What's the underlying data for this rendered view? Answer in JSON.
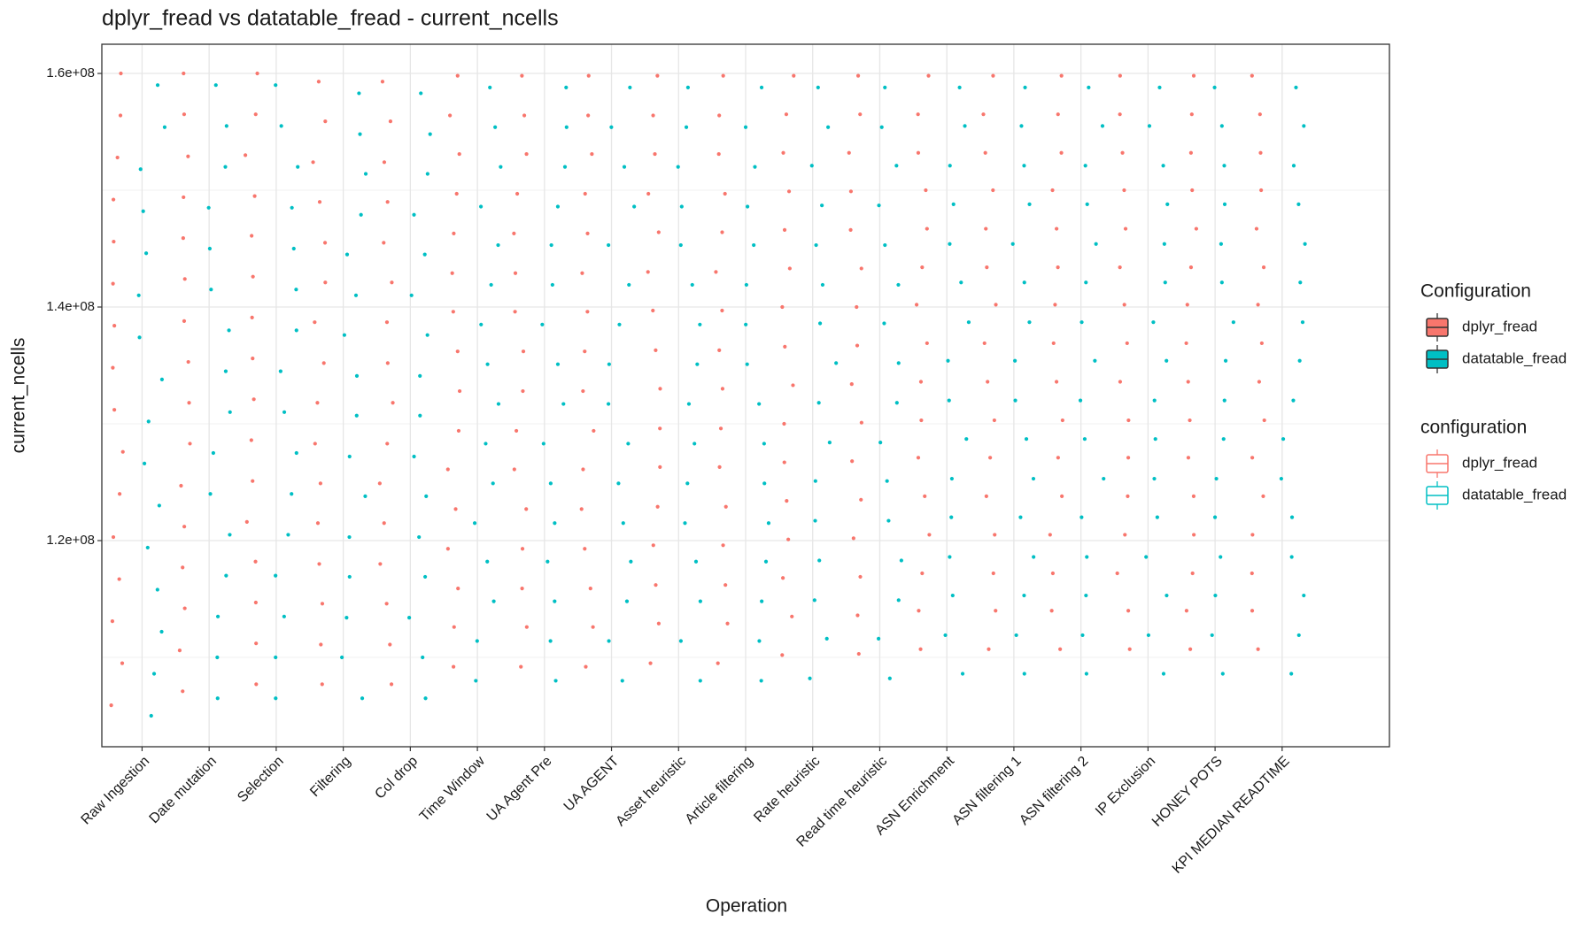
{
  "chart_data": {
    "type": "jitter",
    "title": "dplyr_fread vs datatable_fread - current_ncells",
    "x_label": "Operation",
    "y_label": "current_ncells",
    "categories": [
      "Raw Ingestion",
      "Date mutation",
      "Selection",
      "Filtering",
      "Col drop",
      "Time Window",
      "UA Agent Pre",
      "UA AGENT",
      "Asset heuristic",
      "Article filtering",
      "Rate heuristic",
      "Read time heuristic",
      "ASN Enrichment",
      "ASN filtering 1",
      "ASN filtering 2",
      "IP Exclusion",
      "HONEY POTS",
      "KPI MEDIAN READTIME"
    ],
    "ylim": [
      102350000.0,
      162500000.0
    ],
    "yticks": [
      {
        "value": 120000000.0,
        "label": "1.2e+08"
      },
      {
        "value": 140000000.0,
        "label": "1.4e+08"
      },
      {
        "value": 160000000.0,
        "label": "1.6e+08"
      }
    ],
    "minor_yticks": [
      110000000.0,
      130000000.0,
      150000000.0
    ],
    "grid": true,
    "legends": [
      {
        "title": "Configuration",
        "style": "filled"
      },
      {
        "title": "configuration",
        "style": "outline"
      }
    ],
    "series": [
      {
        "name": "dplyr_fread",
        "color": "#F8766D",
        "values": [
          [
            105900000.0,
            109500000.0,
            113100000.0,
            116700000.0,
            120300000.0,
            124000000.0,
            127600000.0,
            131200000.0,
            134800000.0,
            138400000.0,
            142000000.0,
            145600000.0,
            149200000.0,
            152800000.0,
            156400000.0,
            160000000.0
          ],
          [
            107100000.0,
            110600000.0,
            114200000.0,
            117700000.0,
            121200000.0,
            124700000.0,
            128300000.0,
            131800000.0,
            135300000.0,
            138800000.0,
            142400000.0,
            145900000.0,
            149400000.0,
            152900000.0,
            156500000.0,
            160000000.0
          ],
          [
            107700000.0,
            111200000.0,
            114700000.0,
            118200000.0,
            121600000.0,
            125100000.0,
            128600000.0,
            132100000.0,
            135600000.0,
            139100000.0,
            142600000.0,
            146100000.0,
            149500000.0,
            153000000.0,
            156500000.0,
            160000000.0
          ],
          [
            107700000.0,
            111100000.0,
            114600000.0,
            118000000.0,
            121500000.0,
            124900000.0,
            128300000.0,
            131800000.0,
            135200000.0,
            138700000.0,
            142100000.0,
            145500000.0,
            149000000.0,
            152400000.0,
            155900000.0,
            159300000.0
          ],
          [
            107700000.0,
            111100000.0,
            114600000.0,
            118000000.0,
            121500000.0,
            124900000.0,
            128300000.0,
            131800000.0,
            135200000.0,
            138700000.0,
            142100000.0,
            145500000.0,
            149000000.0,
            152400000.0,
            155900000.0,
            159300000.0
          ],
          [
            109200000.0,
            112600000.0,
            115900000.0,
            119300000.0,
            122700000.0,
            126100000.0,
            129400000.0,
            132800000.0,
            136200000.0,
            139600000.0,
            142900000.0,
            146300000.0,
            149700000.0,
            153100000.0,
            156400000.0,
            159800000.0
          ],
          [
            109200000.0,
            112600000.0,
            115900000.0,
            119300000.0,
            122700000.0,
            126100000.0,
            129400000.0,
            132800000.0,
            136200000.0,
            139600000.0,
            142900000.0,
            146300000.0,
            149700000.0,
            153100000.0,
            156400000.0,
            159800000.0
          ],
          [
            109200000.0,
            112600000.0,
            115900000.0,
            119300000.0,
            122700000.0,
            126100000.0,
            129400000.0,
            132800000.0,
            136200000.0,
            139600000.0,
            142900000.0,
            146300000.0,
            149700000.0,
            153100000.0,
            156400000.0,
            159800000.0
          ],
          [
            109500000.0,
            112900000.0,
            116200000.0,
            119600000.0,
            122900000.0,
            126300000.0,
            129600000.0,
            133000000.0,
            136300000.0,
            139700000.0,
            143000000.0,
            146400000.0,
            149700000.0,
            153100000.0,
            156400000.0,
            159800000.0
          ],
          [
            109500000.0,
            112900000.0,
            116200000.0,
            119600000.0,
            122900000.0,
            126300000.0,
            129600000.0,
            133000000.0,
            136300000.0,
            139700000.0,
            143000000.0,
            146400000.0,
            149700000.0,
            153100000.0,
            156400000.0,
            159800000.0
          ],
          [
            110200000.0,
            113500000.0,
            116800000.0,
            120100000.0,
            123400000.0,
            126700000.0,
            130000000.0,
            133300000.0,
            136600000.0,
            140000000.0,
            143300000.0,
            146600000.0,
            149900000.0,
            153200000.0,
            156500000.0,
            159800000.0
          ],
          [
            110300000.0,
            113600000.0,
            116900000.0,
            120200000.0,
            123500000.0,
            126800000.0,
            130100000.0,
            133400000.0,
            136700000.0,
            140000000.0,
            143300000.0,
            146600000.0,
            149900000.0,
            153200000.0,
            156500000.0,
            159800000.0
          ],
          [
            110700000.0,
            114000000.0,
            117200000.0,
            120500000.0,
            123800000.0,
            127100000.0,
            130300000.0,
            133600000.0,
            136900000.0,
            140200000.0,
            143400000.0,
            146700000.0,
            150000000.0,
            153200000.0,
            156500000.0,
            159800000.0
          ],
          [
            110700000.0,
            114000000.0,
            117200000.0,
            120500000.0,
            123800000.0,
            127100000.0,
            130300000.0,
            133600000.0,
            136900000.0,
            140200000.0,
            143400000.0,
            146700000.0,
            150000000.0,
            153200000.0,
            156500000.0,
            159800000.0
          ],
          [
            110700000.0,
            114000000.0,
            117200000.0,
            120500000.0,
            123800000.0,
            127100000.0,
            130300000.0,
            133600000.0,
            136900000.0,
            140200000.0,
            143400000.0,
            146700000.0,
            150000000.0,
            153200000.0,
            156500000.0,
            159800000.0
          ],
          [
            110700000.0,
            114000000.0,
            117200000.0,
            120500000.0,
            123800000.0,
            127100000.0,
            130300000.0,
            133600000.0,
            136900000.0,
            140200000.0,
            143400000.0,
            146700000.0,
            150000000.0,
            153200000.0,
            156500000.0,
            159800000.0
          ],
          [
            110700000.0,
            114000000.0,
            117200000.0,
            120500000.0,
            123800000.0,
            127100000.0,
            130300000.0,
            133600000.0,
            136900000.0,
            140200000.0,
            143400000.0,
            146700000.0,
            150000000.0,
            153200000.0,
            156500000.0,
            159800000.0
          ],
          [
            110700000.0,
            114000000.0,
            117200000.0,
            120500000.0,
            123800000.0,
            127100000.0,
            130300000.0,
            133600000.0,
            136900000.0,
            140200000.0,
            143400000.0,
            146700000.0,
            150000000.0,
            153200000.0,
            156500000.0,
            159800000.0
          ]
        ]
      },
      {
        "name": "datatable_fread",
        "color": "#00BFC4",
        "values": [
          [
            105000000.0,
            108600000.0,
            112200000.0,
            115800000.0,
            119400000.0,
            123000000.0,
            126600000.0,
            130200000.0,
            133800000.0,
            137400000.0,
            141000000.0,
            144600000.0,
            148200000.0,
            151800000.0,
            155400000.0,
            159000000.0
          ],
          [
            106500000.0,
            110000000.0,
            113500000.0,
            117000000.0,
            120500000.0,
            124000000.0,
            127500000.0,
            131000000.0,
            134500000.0,
            138000000.0,
            141500000.0,
            145000000.0,
            148500000.0,
            152000000.0,
            155500000.0,
            159000000.0
          ],
          [
            106500000.0,
            110000000.0,
            113500000.0,
            117000000.0,
            120500000.0,
            124000000.0,
            127500000.0,
            131000000.0,
            134500000.0,
            138000000.0,
            141500000.0,
            145000000.0,
            148500000.0,
            152000000.0,
            155500000.0,
            159000000.0
          ],
          [
            106500000.0,
            110000000.0,
            113400000.0,
            116900000.0,
            120300000.0,
            123800000.0,
            127200000.0,
            130700000.0,
            134100000.0,
            137600000.0,
            141000000.0,
            144500000.0,
            147900000.0,
            151400000.0,
            154800000.0,
            158300000.0
          ],
          [
            106500000.0,
            110000000.0,
            113400000.0,
            116900000.0,
            120300000.0,
            123800000.0,
            127200000.0,
            130700000.0,
            134100000.0,
            137600000.0,
            141000000.0,
            144500000.0,
            147900000.0,
            151400000.0,
            154800000.0,
            158300000.0
          ],
          [
            108000000.0,
            111400000.0,
            114800000.0,
            118200000.0,
            121500000.0,
            124900000.0,
            128300000.0,
            131700000.0,
            135100000.0,
            138500000.0,
            141900000.0,
            145300000.0,
            148600000.0,
            152000000.0,
            155400000.0,
            158800000.0
          ],
          [
            108000000.0,
            111400000.0,
            114800000.0,
            118200000.0,
            121500000.0,
            124900000.0,
            128300000.0,
            131700000.0,
            135100000.0,
            138500000.0,
            141900000.0,
            145300000.0,
            148600000.0,
            152000000.0,
            155400000.0,
            158800000.0
          ],
          [
            108000000.0,
            111400000.0,
            114800000.0,
            118200000.0,
            121500000.0,
            124900000.0,
            128300000.0,
            131700000.0,
            135100000.0,
            138500000.0,
            141900000.0,
            145300000.0,
            148600000.0,
            152000000.0,
            155400000.0,
            158800000.0
          ],
          [
            108000000.0,
            111400000.0,
            114800000.0,
            118200000.0,
            121500000.0,
            124900000.0,
            128300000.0,
            131700000.0,
            135100000.0,
            138500000.0,
            141900000.0,
            145300000.0,
            148600000.0,
            152000000.0,
            155400000.0,
            158800000.0
          ],
          [
            108000000.0,
            111400000.0,
            114800000.0,
            118200000.0,
            121500000.0,
            124900000.0,
            128300000.0,
            131700000.0,
            135100000.0,
            138500000.0,
            141900000.0,
            145300000.0,
            148600000.0,
            152000000.0,
            155400000.0,
            158800000.0
          ],
          [
            108200000.0,
            111600000.0,
            114900000.0,
            118300000.0,
            121700000.0,
            125100000.0,
            128400000.0,
            131800000.0,
            135200000.0,
            138600000.0,
            141900000.0,
            145300000.0,
            148700000.0,
            152100000.0,
            155400000.0,
            158800000.0
          ],
          [
            108200000.0,
            111600000.0,
            114900000.0,
            118300000.0,
            121700000.0,
            125100000.0,
            128400000.0,
            131800000.0,
            135200000.0,
            138600000.0,
            141900000.0,
            145300000.0,
            148700000.0,
            152100000.0,
            155400000.0,
            158800000.0
          ],
          [
            108600000.0,
            111900000.0,
            115300000.0,
            118600000.0,
            122000000.0,
            125300000.0,
            128700000.0,
            132000000.0,
            135400000.0,
            138700000.0,
            142100000.0,
            145400000.0,
            148800000.0,
            152100000.0,
            155500000.0,
            158800000.0
          ],
          [
            108600000.0,
            111900000.0,
            115300000.0,
            118600000.0,
            122000000.0,
            125300000.0,
            128700000.0,
            132000000.0,
            135400000.0,
            138700000.0,
            142100000.0,
            145400000.0,
            148800000.0,
            152100000.0,
            155500000.0,
            158800000.0
          ],
          [
            108600000.0,
            111900000.0,
            115300000.0,
            118600000.0,
            122000000.0,
            125300000.0,
            128700000.0,
            132000000.0,
            135400000.0,
            138700000.0,
            142100000.0,
            145400000.0,
            148800000.0,
            152100000.0,
            155500000.0,
            158800000.0
          ],
          [
            108600000.0,
            111900000.0,
            115300000.0,
            118600000.0,
            122000000.0,
            125300000.0,
            128700000.0,
            132000000.0,
            135400000.0,
            138700000.0,
            142100000.0,
            145400000.0,
            148800000.0,
            152100000.0,
            155500000.0,
            158800000.0
          ],
          [
            108600000.0,
            111900000.0,
            115300000.0,
            118600000.0,
            122000000.0,
            125300000.0,
            128700000.0,
            132000000.0,
            135400000.0,
            138700000.0,
            142100000.0,
            145400000.0,
            148800000.0,
            152100000.0,
            155500000.0,
            158800000.0
          ],
          [
            108600000.0,
            111900000.0,
            115300000.0,
            118600000.0,
            122000000.0,
            125300000.0,
            128700000.0,
            132000000.0,
            135400000.0,
            138700000.0,
            142100000.0,
            145400000.0,
            148800000.0,
            152100000.0,
            155500000.0,
            158800000.0
          ]
        ]
      }
    ]
  }
}
